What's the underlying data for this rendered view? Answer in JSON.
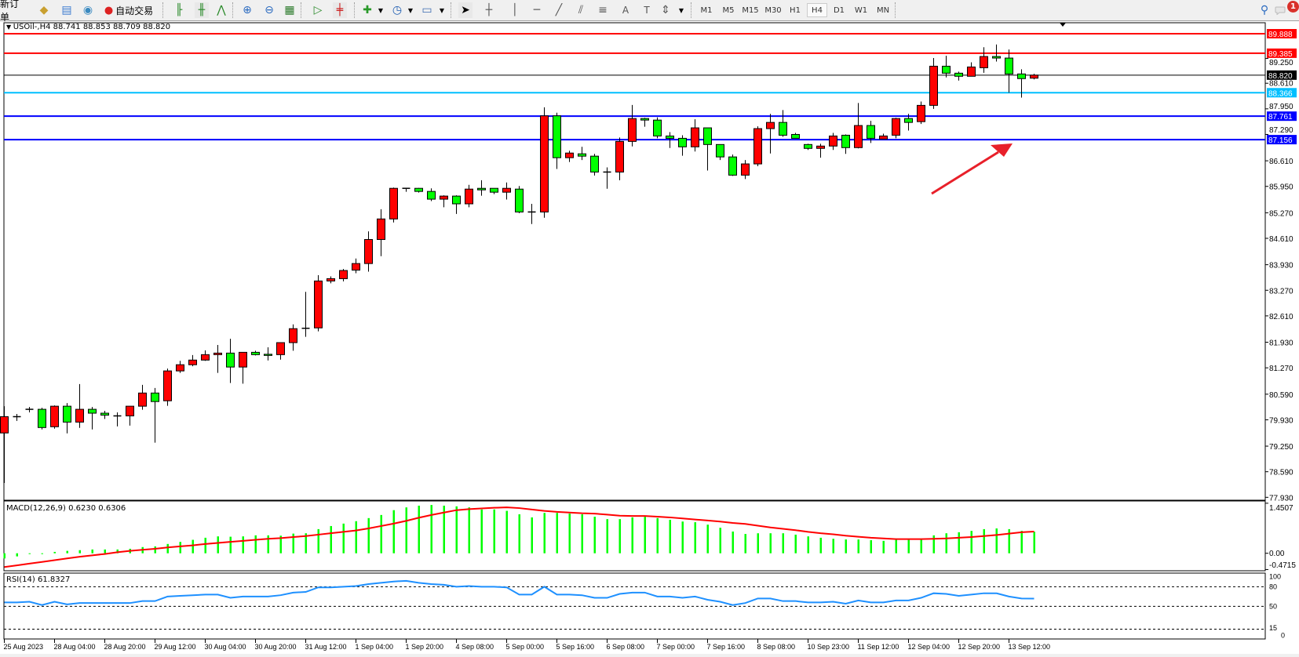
{
  "toolbar": {
    "new_order": "新订单",
    "auto_trading": "自动交易",
    "icons": [
      "market-watch-icon",
      "navigator-icon",
      "signals-icon",
      "autotrading-icon",
      "bar-chart-icon",
      "candlestick-icon",
      "line-chart-icon",
      "zoom-in-icon",
      "zoom-out-icon",
      "tile-windows-icon",
      "autoscroll-icon",
      "chart-shift-icon",
      "indicators-icon",
      "periods-icon",
      "templates-icon",
      "cursor-icon",
      "crosshair-icon",
      "vertical-line-icon",
      "horizontal-line-icon",
      "trendline-icon",
      "equidistant-channel-icon",
      "fibonacci-icon",
      "text-icon",
      "text-label-icon",
      "arrows-icon"
    ],
    "timeframes": [
      "M1",
      "M5",
      "M15",
      "M30",
      "H1",
      "H4",
      "D1",
      "W1",
      "MN"
    ],
    "selected_timeframe": "H4",
    "notification_count": "1"
  },
  "chart": {
    "header": "USOil-,H4  88.741 88.853 88.709 88.820",
    "symbol": "USOil-",
    "timeframe": "H4",
    "colors": {
      "up": "#ff0000",
      "down": "#00ff00",
      "doji": "#000000"
    }
  },
  "chart_data": [
    {
      "type": "candlestick",
      "title": "USOil-,H4",
      "ylim": [
        77.93,
        89.888
      ],
      "y_ticks": [
        "89.250",
        "88.610",
        "87.950",
        "87.290",
        "86.610",
        "85.950",
        "85.270",
        "84.610",
        "83.930",
        "83.270",
        "82.610",
        "81.930",
        "81.270",
        "80.590",
        "79.930",
        "79.250",
        "78.590",
        "77.930"
      ],
      "x_ticks": [
        "25 Aug 2023",
        "28 Aug 04:00",
        "28 Aug 20:00",
        "29 Aug 12:00",
        "30 Aug 04:00",
        "30 Aug 20:00",
        "31 Aug 12:00",
        "1 Sep 04:00",
        "1 Sep 20:00",
        "4 Sep 08:00",
        "5 Sep 00:00",
        "5 Sep 16:00",
        "6 Sep 08:00",
        "7 Sep 00:00",
        "7 Sep 16:00",
        "8 Sep 08:00",
        "10 Sep 23:00",
        "11 Sep 12:00",
        "12 Sep 04:00",
        "12 Sep 20:00",
        "13 Sep 12:00"
      ],
      "ohlc_columns": [
        "open",
        "high",
        "low",
        "close"
      ],
      "ohlc": [
        [
          79.59,
          80.28,
          78.3,
          80.01
        ],
        [
          80.01,
          80.08,
          79.9,
          80.01
        ],
        [
          80.2,
          80.26,
          80.12,
          80.2
        ],
        [
          80.2,
          80.24,
          79.68,
          79.73
        ],
        [
          79.75,
          80.3,
          79.7,
          80.28
        ],
        [
          80.28,
          80.36,
          79.58,
          79.87
        ],
        [
          79.87,
          80.85,
          79.72,
          80.2
        ],
        [
          80.2,
          80.26,
          79.68,
          80.1
        ],
        [
          80.1,
          80.16,
          79.95,
          80.05
        ],
        [
          80.03,
          80.12,
          79.76,
          80.03
        ],
        [
          80.03,
          80.28,
          79.78,
          80.28
        ],
        [
          80.28,
          80.83,
          80.19,
          80.62
        ],
        [
          80.62,
          80.75,
          79.34,
          80.4
        ],
        [
          80.42,
          81.25,
          80.29,
          81.19
        ],
        [
          81.19,
          81.45,
          81.14,
          81.35
        ],
        [
          81.35,
          81.6,
          81.31,
          81.47
        ],
        [
          81.47,
          81.72,
          81.45,
          81.61
        ],
        [
          81.61,
          81.86,
          81.14,
          81.65
        ],
        [
          81.65,
          82.02,
          80.88,
          81.29
        ],
        [
          81.29,
          81.67,
          80.86,
          81.67
        ],
        [
          81.67,
          81.71,
          81.59,
          81.61
        ],
        [
          81.62,
          81.8,
          81.46,
          81.61
        ],
        [
          81.61,
          81.92,
          81.48,
          81.92
        ],
        [
          81.92,
          82.39,
          81.71,
          82.28
        ],
        [
          82.29,
          83.23,
          82.07,
          82.29
        ],
        [
          82.3,
          83.66,
          82.21,
          83.51
        ],
        [
          83.51,
          83.63,
          83.45,
          83.57
        ],
        [
          83.57,
          83.82,
          83.5,
          83.78
        ],
        [
          83.79,
          84.09,
          83.71,
          83.96
        ],
        [
          83.96,
          84.79,
          83.75,
          84.58
        ],
        [
          84.58,
          85.36,
          84.15,
          85.11
        ],
        [
          85.11,
          85.92,
          85.02,
          85.9
        ],
        [
          85.9,
          85.9,
          85.81,
          85.9
        ],
        [
          85.9,
          85.91,
          85.79,
          85.82
        ],
        [
          85.82,
          85.9,
          85.57,
          85.62
        ],
        [
          85.62,
          85.72,
          85.41,
          85.7
        ],
        [
          85.7,
          85.72,
          85.24,
          85.5
        ],
        [
          85.5,
          85.99,
          85.41,
          85.88
        ],
        [
          85.9,
          86.11,
          85.71,
          85.86
        ],
        [
          85.9,
          85.9,
          85.75,
          85.8
        ],
        [
          85.8,
          86.05,
          85.61,
          85.9
        ],
        [
          85.88,
          85.96,
          85.26,
          85.29
        ],
        [
          85.29,
          85.5,
          84.98,
          85.29
        ],
        [
          85.29,
          87.99,
          85.14,
          87.77
        ],
        [
          87.77,
          87.85,
          86.4,
          86.69
        ],
        [
          86.69,
          86.87,
          86.58,
          86.81
        ],
        [
          86.79,
          86.97,
          86.63,
          86.73
        ],
        [
          86.73,
          86.79,
          86.23,
          86.32
        ],
        [
          86.32,
          86.44,
          85.89,
          86.32
        ],
        [
          86.32,
          87.21,
          86.11,
          87.11
        ],
        [
          87.11,
          88.05,
          86.98,
          87.7
        ],
        [
          87.7,
          87.72,
          87.49,
          87.66
        ],
        [
          87.66,
          87.73,
          87.19,
          87.25
        ],
        [
          87.25,
          87.35,
          86.94,
          87.19
        ],
        [
          87.19,
          87.27,
          86.74,
          86.97
        ],
        [
          86.97,
          87.68,
          86.85,
          87.46
        ],
        [
          87.46,
          87.46,
          86.36,
          87.03
        ],
        [
          87.03,
          87.03,
          86.63,
          86.71
        ],
        [
          86.71,
          86.77,
          86.22,
          86.24
        ],
        [
          86.24,
          86.63,
          86.14,
          86.53
        ],
        [
          86.53,
          87.5,
          86.47,
          87.44
        ],
        [
          87.44,
          87.82,
          86.8,
          87.6
        ],
        [
          87.6,
          87.92,
          87.23,
          87.27
        ],
        [
          87.29,
          87.33,
          87.19,
          87.19
        ],
        [
          87.03,
          87.05,
          86.89,
          86.93
        ],
        [
          86.93,
          87.05,
          86.69,
          86.99
        ],
        [
          86.99,
          87.33,
          86.89,
          87.25
        ],
        [
          87.27,
          87.29,
          86.79,
          86.95
        ],
        [
          86.95,
          88.1,
          86.93,
          87.52
        ],
        [
          87.52,
          87.64,
          87.07,
          87.19
        ],
        [
          87.17,
          87.31,
          87.17,
          87.25
        ],
        [
          87.27,
          87.72,
          87.19,
          87.7
        ],
        [
          87.7,
          87.82,
          87.39,
          87.6
        ],
        [
          87.62,
          88.14,
          87.56,
          88.04
        ],
        [
          88.04,
          89.26,
          87.95,
          89.05
        ],
        [
          89.05,
          89.32,
          88.76,
          88.87
        ],
        [
          88.87,
          88.91,
          88.68,
          88.79
        ],
        [
          88.79,
          89.15,
          88.79,
          89.03
        ],
        [
          89.01,
          89.54,
          88.88,
          89.3
        ],
        [
          89.3,
          89.61,
          89.17,
          89.26
        ],
        [
          89.26,
          89.48,
          88.37,
          88.85
        ],
        [
          88.85,
          88.97,
          88.24,
          88.73
        ],
        [
          88.741,
          88.853,
          88.709,
          88.82
        ]
      ],
      "horizontal_lines": [
        {
          "price": "89.888",
          "color": "#ff0000"
        },
        {
          "price": "89.385",
          "color": "#ff0000"
        },
        {
          "price": "88.820",
          "color": "#000000"
        },
        {
          "price": "88.366",
          "color": "#00bfff"
        },
        {
          "price": "87.761",
          "color": "#0000ff"
        },
        {
          "price": "87.156",
          "color": "#0000ff"
        }
      ],
      "annotation": {
        "type": "arrow",
        "color": "#e8202a"
      }
    },
    {
      "type": "bar",
      "title": "MACD(12,26,9) 0.6230 0.6306",
      "ylim": [
        -0.4715,
        1.4507
      ],
      "y_ticks": [
        "1.4507",
        "0.00",
        "-0.4715"
      ],
      "series": [
        {
          "name": "MACD",
          "type": "bar",
          "color": "#00ff00",
          "values": [
            -0.15,
            -0.09,
            0.0,
            0.0,
            0.04,
            0.07,
            0.09,
            0.11,
            0.11,
            0.11,
            0.13,
            0.18,
            0.2,
            0.27,
            0.33,
            0.39,
            0.45,
            0.49,
            0.48,
            0.49,
            0.52,
            0.52,
            0.51,
            0.57,
            0.58,
            0.7,
            0.79,
            0.86,
            0.93,
            1.02,
            1.11,
            1.25,
            1.33,
            1.38,
            1.4,
            1.38,
            1.36,
            1.33,
            1.27,
            1.27,
            1.23,
            1.13,
            1.04,
            1.17,
            1.17,
            1.15,
            1.13,
            1.06,
            0.99,
            0.99,
            1.04,
            1.06,
            1.02,
            0.97,
            0.92,
            0.9,
            0.83,
            0.74,
            0.63,
            0.56,
            0.58,
            0.58,
            0.58,
            0.54,
            0.49,
            0.45,
            0.42,
            0.4,
            0.4,
            0.38,
            0.36,
            0.4,
            0.4,
            0.4,
            0.52,
            0.58,
            0.61,
            0.65,
            0.7,
            0.72,
            0.7,
            0.65,
            0.623
          ]
        },
        {
          "name": "Signal",
          "type": "line",
          "color": "#ff0000",
          "values": [
            -0.4,
            -0.35,
            -0.3,
            -0.25,
            -0.2,
            -0.15,
            -0.1,
            -0.06,
            -0.02,
            0.03,
            0.07,
            0.1,
            0.13,
            0.17,
            0.2,
            0.23,
            0.27,
            0.3,
            0.33,
            0.36,
            0.39,
            0.42,
            0.44,
            0.47,
            0.5,
            0.54,
            0.58,
            0.62,
            0.66,
            0.72,
            0.79,
            0.86,
            0.94,
            1.03,
            1.11,
            1.18,
            1.25,
            1.28,
            1.3,
            1.32,
            1.33,
            1.31,
            1.27,
            1.23,
            1.2,
            1.18,
            1.16,
            1.15,
            1.12,
            1.09,
            1.08,
            1.08,
            1.06,
            1.04,
            1.01,
            0.98,
            0.95,
            0.92,
            0.88,
            0.85,
            0.8,
            0.75,
            0.71,
            0.67,
            0.62,
            0.58,
            0.55,
            0.51,
            0.48,
            0.45,
            0.43,
            0.41,
            0.41,
            0.41,
            0.42,
            0.43,
            0.45,
            0.47,
            0.5,
            0.53,
            0.57,
            0.61,
            0.6306
          ]
        }
      ]
    },
    {
      "type": "line",
      "title": "RSI(14) 61.8327",
      "ylim": [
        0,
        100
      ],
      "y_ticks": [
        "100",
        "80",
        "50",
        "15",
        "0"
      ],
      "levels": [
        80,
        50,
        15
      ],
      "series": [
        {
          "name": "RSI(14)",
          "color": "#1e90ff",
          "values": [
            56,
            56,
            57,
            52,
            57,
            53,
            55,
            55,
            55,
            55,
            55,
            58,
            58,
            65,
            66,
            67,
            68,
            68,
            63,
            65,
            65,
            65,
            67,
            71,
            72,
            79,
            79,
            80,
            81,
            84,
            86,
            88,
            89,
            86,
            84,
            83,
            80,
            81,
            80,
            80,
            79,
            68,
            68,
            80,
            68,
            68,
            67,
            63,
            63,
            69,
            71,
            71,
            65,
            65,
            63,
            65,
            60,
            57,
            52,
            55,
            62,
            62,
            58,
            58,
            56,
            56,
            57,
            54,
            59,
            56,
            56,
            59,
            59,
            63,
            70,
            69,
            66,
            68,
            70,
            70,
            65,
            62,
            61.83
          ]
        }
      ]
    }
  ]
}
